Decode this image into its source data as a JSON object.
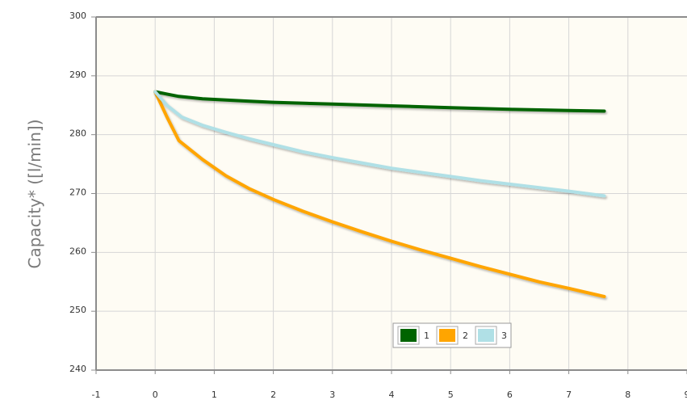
{
  "chart_data": {
    "type": "line",
    "title": "",
    "xlabel": "",
    "ylabel": "Capacity* ([l/min])",
    "xlim": [
      -1,
      9
    ],
    "ylim": [
      240,
      300
    ],
    "x_ticks": [
      -1,
      0,
      1,
      2,
      3,
      4,
      5,
      6,
      7,
      8,
      9
    ],
    "y_ticks": [
      240,
      250,
      260,
      270,
      280,
      290,
      300
    ],
    "grid": true,
    "legend_position": "bottom-center",
    "background": "#fefcf4",
    "series": [
      {
        "name": "1",
        "color": "#006400",
        "x": [
          0,
          0.2,
          0.4,
          0.8,
          1.2,
          1.6,
          2,
          3,
          4,
          5,
          6,
          7,
          7.6
        ],
        "y": [
          287.3,
          286.9,
          286.5,
          286.1,
          285.9,
          285.7,
          285.5,
          285.2,
          284.9,
          284.6,
          284.3,
          284.1,
          284.0
        ]
      },
      {
        "name": "2",
        "color": "#ffa500",
        "x": [
          0,
          0.2,
          0.4,
          0.8,
          1.2,
          1.6,
          2,
          2.5,
          3,
          3.5,
          4,
          4.5,
          5,
          5.5,
          6,
          6.5,
          7,
          7.6
        ],
        "y": [
          287.3,
          283.0,
          279.0,
          275.8,
          273.0,
          270.8,
          269.0,
          267.0,
          265.2,
          263.5,
          261.9,
          260.4,
          259.0,
          257.6,
          256.3,
          255.0,
          253.9,
          252.5
        ]
      },
      {
        "name": "3",
        "color": "#b0e0e6",
        "x": [
          0,
          0.2,
          0.45,
          0.8,
          1.2,
          1.6,
          2,
          2.5,
          3,
          3.5,
          4,
          4.5,
          5,
          5.5,
          6,
          6.5,
          7,
          7.6
        ],
        "y": [
          287.3,
          285.0,
          283.0,
          281.6,
          280.4,
          279.3,
          278.3,
          277.1,
          276.1,
          275.2,
          274.3,
          273.6,
          272.9,
          272.2,
          271.6,
          271.0,
          270.4,
          269.6
        ]
      }
    ]
  }
}
